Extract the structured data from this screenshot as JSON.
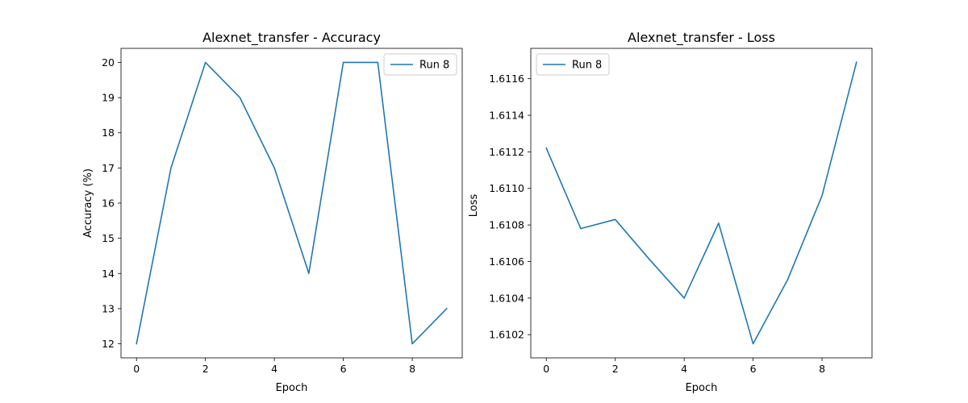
{
  "chart_data": [
    {
      "type": "line",
      "title": "Alexnet_transfer - Accuracy",
      "xlabel": "Epoch",
      "ylabel": "Accuracy (%)",
      "x": [
        0,
        1,
        2,
        3,
        4,
        5,
        6,
        7,
        8,
        9
      ],
      "series": [
        {
          "name": "Run 8",
          "color": "#1f77b4",
          "values": [
            12,
            17,
            20,
            19,
            17,
            14,
            20,
            20,
            12,
            13
          ]
        }
      ],
      "xlim": [
        -0.45,
        9.45
      ],
      "ylim": [
        11.6,
        20.4
      ],
      "xticks": [
        0,
        2,
        4,
        6,
        8
      ],
      "yticks": [
        12,
        13,
        14,
        15,
        16,
        17,
        18,
        19,
        20
      ],
      "yticklabels": [
        "12",
        "13",
        "14",
        "15",
        "16",
        "17",
        "18",
        "19",
        "20"
      ],
      "grid": false,
      "legend": "upper right"
    },
    {
      "type": "line",
      "title": "Alexnet_transfer - Loss",
      "xlabel": "Epoch",
      "ylabel": "Loss",
      "x": [
        0,
        1,
        2,
        3,
        4,
        5,
        6,
        7,
        8,
        9
      ],
      "series": [
        {
          "name": "Run 8",
          "color": "#1f77b4",
          "values": [
            1.61122,
            1.61078,
            1.61083,
            1.61061,
            1.6104,
            1.61081,
            1.61015,
            1.6105,
            1.61096,
            1.61169
          ]
        }
      ],
      "xlim": [
        -0.45,
        9.45
      ],
      "ylim": [
        1.610073,
        1.611766
      ],
      "xticks": [
        0,
        2,
        4,
        6,
        8
      ],
      "yticks": [
        1.6102,
        1.6104,
        1.6106,
        1.6108,
        1.611,
        1.6112,
        1.6114,
        1.6116
      ],
      "yticklabels": [
        "1.6102",
        "1.6104",
        "1.6106",
        "1.6108",
        "1.6110",
        "1.6112",
        "1.6114",
        "1.6116"
      ],
      "grid": false,
      "legend": "upper left"
    }
  ]
}
